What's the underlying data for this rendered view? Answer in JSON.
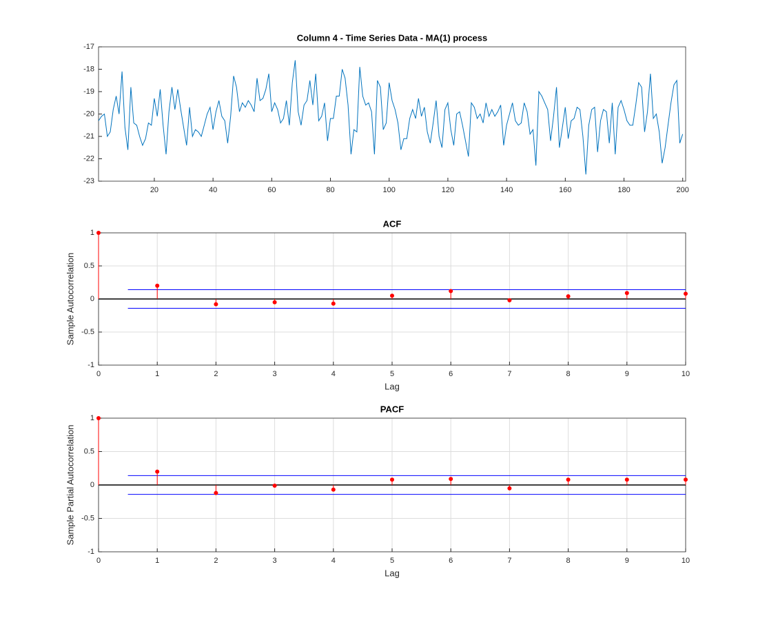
{
  "chart_data": [
    {
      "type": "line",
      "title": "Column 4 - Time Series Data - MA(1) process",
      "color": "#0072bd",
      "grid": false,
      "x": [
        1,
        2,
        3,
        4,
        5,
        6,
        7,
        8,
        9,
        10,
        11,
        12,
        13,
        14,
        15,
        16,
        17,
        18,
        19,
        20,
        21,
        22,
        23,
        24,
        25,
        26,
        27,
        28,
        29,
        30,
        31,
        32,
        33,
        34,
        35,
        36,
        37,
        38,
        39,
        40,
        41,
        42,
        43,
        44,
        45,
        46,
        47,
        48,
        49,
        50,
        51,
        52,
        53,
        54,
        55,
        56,
        57,
        58,
        59,
        60,
        61,
        62,
        63,
        64,
        65,
        66,
        67,
        68,
        69,
        70,
        71,
        72,
        73,
        74,
        75,
        76,
        77,
        78,
        79,
        80,
        81,
        82,
        83,
        84,
        85,
        86,
        87,
        88,
        89,
        90,
        91,
        92,
        93,
        94,
        95,
        96,
        97,
        98,
        99,
        100,
        101,
        102,
        103,
        104,
        105,
        106,
        107,
        108,
        109,
        110,
        111,
        112,
        113,
        114,
        115,
        116,
        117,
        118,
        119,
        120,
        121,
        122,
        123,
        124,
        125,
        126,
        127,
        128,
        129,
        130,
        131,
        132,
        133,
        134,
        135,
        136,
        137,
        138,
        139,
        140,
        141,
        142,
        143,
        144,
        145,
        146,
        147,
        148,
        149,
        150,
        151,
        152,
        153,
        154,
        155,
        156,
        157,
        158,
        159,
        160,
        161,
        162,
        163,
        164,
        165,
        166,
        167,
        168,
        169,
        170,
        171,
        172,
        173,
        174,
        175,
        176,
        177,
        178,
        179,
        180,
        181,
        182,
        183,
        184,
        185,
        186,
        187,
        188,
        189,
        190,
        191,
        192,
        193,
        194,
        195,
        196,
        197,
        198,
        199,
        200
      ],
      "values": [
        -20.3,
        -20.1,
        -20.0,
        -21.0,
        -20.8,
        -19.8,
        -19.2,
        -20.0,
        -18.1,
        -20.6,
        -21.6,
        -18.8,
        -20.4,
        -20.5,
        -21.0,
        -21.4,
        -21.1,
        -20.4,
        -20.5,
        -19.3,
        -20.1,
        -18.9,
        -20.5,
        -21.8,
        -19.9,
        -18.8,
        -19.8,
        -18.9,
        -19.8,
        -20.6,
        -21.4,
        -19.7,
        -21.0,
        -20.7,
        -20.8,
        -21.0,
        -20.5,
        -20.0,
        -19.7,
        -20.7,
        -19.9,
        -19.4,
        -20.1,
        -20.3,
        -21.3,
        -20.1,
        -18.3,
        -18.8,
        -19.9,
        -19.5,
        -19.7,
        -19.4,
        -19.6,
        -19.9,
        -18.4,
        -19.4,
        -19.3,
        -18.9,
        -18.2,
        -19.9,
        -19.5,
        -19.8,
        -20.4,
        -20.2,
        -19.4,
        -20.5,
        -18.6,
        -17.6,
        -19.9,
        -20.5,
        -19.6,
        -19.4,
        -18.5,
        -19.6,
        -18.2,
        -20.3,
        -20.1,
        -19.5,
        -21.2,
        -20.2,
        -20.2,
        -19.2,
        -19.2,
        -18.0,
        -18.4,
        -19.6,
        -21.8,
        -20.7,
        -20.8,
        -17.9,
        -19.2,
        -19.6,
        -19.5,
        -19.9,
        -21.8,
        -18.5,
        -18.8,
        -20.7,
        -20.4,
        -18.6,
        -19.4,
        -19.8,
        -20.4,
        -21.6,
        -21.1,
        -21.1,
        -20.2,
        -19.8,
        -20.2,
        -19.3,
        -20.1,
        -19.7,
        -20.8,
        -21.3,
        -20.4,
        -19.4,
        -21.0,
        -21.5,
        -19.8,
        -19.5,
        -20.7,
        -21.4,
        -20.0,
        -19.9,
        -20.5,
        -21.2,
        -21.9,
        -19.5,
        -19.7,
        -20.2,
        -20.0,
        -20.4,
        -19.5,
        -20.1,
        -19.8,
        -20.1,
        -19.9,
        -19.6,
        -21.4,
        -20.5,
        -20.0,
        -19.5,
        -20.3,
        -20.5,
        -20.4,
        -19.5,
        -19.9,
        -20.9,
        -20.7,
        -22.3,
        -19.0,
        -19.2,
        -19.5,
        -19.8,
        -21.2,
        -20.1,
        -18.8,
        -21.5,
        -20.6,
        -19.7,
        -21.1,
        -20.3,
        -20.2,
        -19.7,
        -19.8,
        -21.0,
        -22.7,
        -20.5,
        -19.8,
        -19.7,
        -21.7,
        -20.3,
        -19.8,
        -19.9,
        -21.3,
        -19.5,
        -21.8,
        -19.7,
        -19.4,
        -19.8,
        -20.3,
        -20.5,
        -20.5,
        -19.6,
        -18.6,
        -18.8,
        -20.8,
        -19.9,
        -18.2,
        -20.2,
        -20.0,
        -20.8,
        -22.2,
        -21.5,
        -20.5,
        -19.5,
        -18.7,
        -18.5,
        -21.3,
        -20.9
      ],
      "xlim": [
        1,
        201
      ],
      "xticks": [
        20,
        40,
        60,
        80,
        100,
        120,
        140,
        160,
        180,
        200
      ],
      "ylim": [
        -23,
        -17
      ],
      "yticks": [
        -23,
        -22,
        -21,
        -20,
        -19,
        -18,
        -17
      ]
    },
    {
      "type": "stem",
      "title": "ACF",
      "x_label": "Lag",
      "y_label": "Sample Autocorrelation",
      "color": "#ff0000",
      "bounds_color": "#0000ff",
      "grid": true,
      "x": [
        0,
        1,
        2,
        3,
        4,
        5,
        6,
        7,
        8,
        9,
        10
      ],
      "values": [
        1,
        0.2,
        -0.08,
        -0.05,
        -0.07,
        0.05,
        0.12,
        -0.02,
        0.04,
        0.09,
        0.08
      ],
      "bounds": [
        0.14,
        -0.14
      ],
      "xlim": [
        0,
        10
      ],
      "xticks": [
        0,
        1,
        2,
        3,
        4,
        5,
        6,
        7,
        8,
        9,
        10
      ],
      "ylim": [
        -1,
        1
      ],
      "yticks": [
        -1,
        -0.5,
        0,
        0.5,
        1
      ]
    },
    {
      "type": "stem",
      "title": "PACF",
      "x_label": "Lag",
      "y_label": "Sample Partial Autocorrelation",
      "color": "#ff0000",
      "bounds_color": "#0000ff",
      "grid": true,
      "x": [
        0,
        1,
        2,
        3,
        4,
        5,
        6,
        7,
        8,
        9,
        10
      ],
      "values": [
        1,
        0.2,
        -0.12,
        -0.01,
        -0.07,
        0.08,
        0.09,
        -0.05,
        0.08,
        0.08,
        0.08
      ],
      "bounds": [
        0.14,
        -0.14
      ],
      "xlim": [
        0,
        10
      ],
      "xticks": [
        0,
        1,
        2,
        3,
        4,
        5,
        6,
        7,
        8,
        9,
        10
      ],
      "ylim": [
        -1,
        1
      ],
      "yticks": [
        -1,
        -0.5,
        0,
        0.5,
        1
      ]
    }
  ]
}
